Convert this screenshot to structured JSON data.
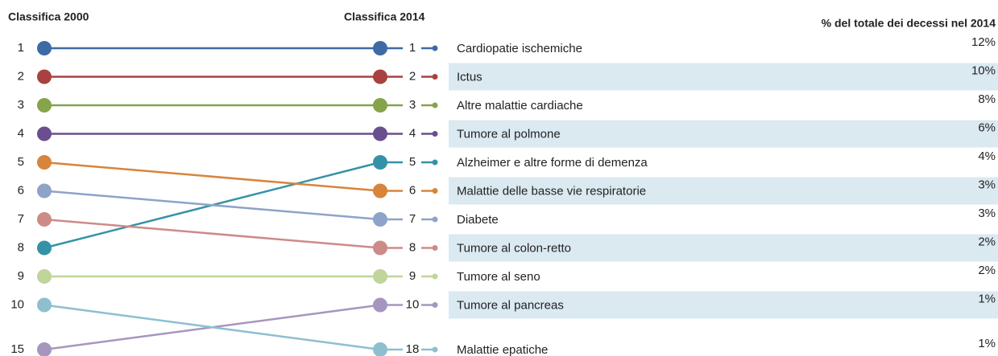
{
  "chart_data": {
    "type": "slope",
    "left_title": "Classifica 2000",
    "right_title": "Classifica 2014",
    "value_title": "% del totale dei decessi nel 2014",
    "series": [
      {
        "name": "Cardiopatie ischemiche",
        "color": "#3e6aa6",
        "rank_2000": 1,
        "rank_2014": 1
      },
      {
        "name": "Ictus",
        "color": "#a8413f",
        "rank_2000": 2,
        "rank_2014": 2
      },
      {
        "name": "Altre malattie cardiache",
        "color": "#86a44a",
        "rank_2000": 3,
        "rank_2014": 3
      },
      {
        "name": "Tumore al polmone",
        "color": "#6a4e8e",
        "rank_2000": 4,
        "rank_2014": 4
      },
      {
        "name": "Alzheimer e altre forme di demenza",
        "color": "#3592a6",
        "rank_2000": 8,
        "rank_2014": 5
      },
      {
        "name": "Malattie delle basse vie respiratorie",
        "color": "#d8843b",
        "rank_2000": 5,
        "rank_2014": 6
      },
      {
        "name": "Diabete",
        "color": "#8ea3c8",
        "rank_2000": 6,
        "rank_2014": 7
      },
      {
        "name": "Tumore al colon-retto",
        "color": "#cd8b88",
        "rank_2000": 7,
        "rank_2014": 8
      },
      {
        "name": "Tumore al seno",
        "color": "#bfd59a",
        "rank_2000": 9,
        "rank_2014": 9
      },
      {
        "name": "Tumore al pancreas",
        "color": "#a696bf",
        "rank_2000": 15,
        "rank_2014": 10
      },
      {
        "name": "Malattie epatiche",
        "color": "#8dbfcf",
        "rank_2000": 10,
        "rank_2014": 18
      }
    ],
    "values": [
      12,
      10,
      8,
      6,
      4,
      3,
      3,
      2,
      2,
      1,
      1
    ],
    "value_labels": [
      "12%",
      "10%",
      "8%",
      "6%",
      "4%",
      "3%",
      "3%",
      "2%",
      "2%",
      "1%",
      "1%"
    ],
    "stripe_color": "#dbe9f1"
  }
}
